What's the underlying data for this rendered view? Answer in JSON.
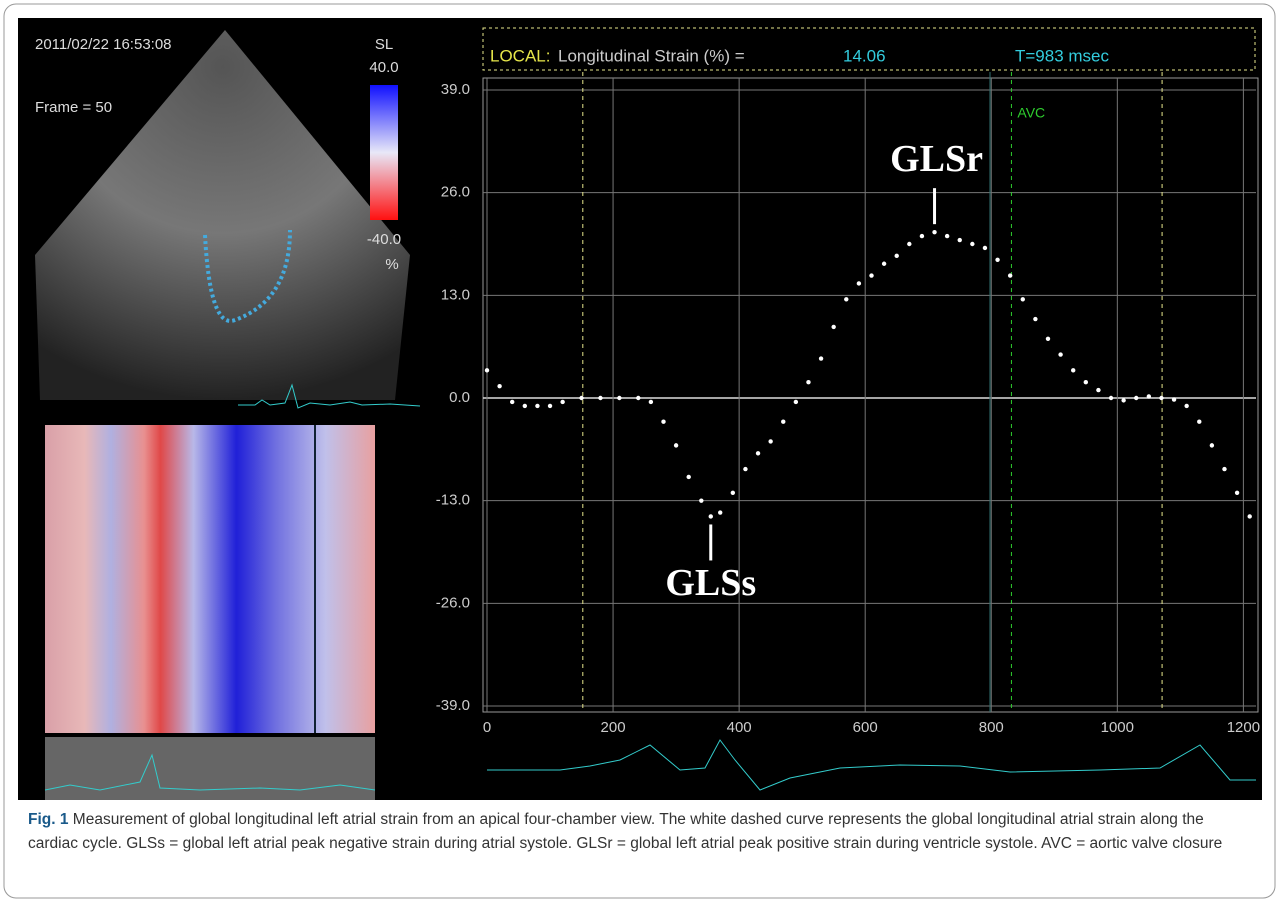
{
  "panel": {
    "timestamp": "2011/02/22 16:53:08",
    "frame": "Frame = 50",
    "scale_name": "SL",
    "scale_max": "40.0",
    "scale_min": "-40.0",
    "scale_unit": "%"
  },
  "chart_data": {
    "type": "line",
    "header_label": "LOCAL:",
    "measure": "Longitudinal Strain (%) =",
    "measure_value": "14.06",
    "time": "T=983 msec",
    "x": [
      0,
      20,
      40,
      60,
      80,
      100,
      120,
      150,
      180,
      210,
      240,
      260,
      280,
      300,
      320,
      340,
      355,
      370,
      390,
      410,
      430,
      450,
      470,
      490,
      510,
      530,
      550,
      570,
      590,
      610,
      630,
      650,
      670,
      690,
      710,
      730,
      750,
      770,
      790,
      810,
      830,
      850,
      870,
      890,
      910,
      930,
      950,
      970,
      990,
      1010,
      1030,
      1050,
      1070,
      1090,
      1110,
      1130,
      1150,
      1170,
      1190,
      1210
    ],
    "values": [
      3.5,
      1.5,
      -0.5,
      -1,
      -1,
      -1,
      -0.5,
      0,
      0,
      0,
      0,
      -0.5,
      -3,
      -6,
      -10,
      -13,
      -15,
      -14.5,
      -12,
      -9,
      -7,
      -5.5,
      -3,
      -0.5,
      2,
      5,
      9,
      12.5,
      14.5,
      15.5,
      17,
      18,
      19.5,
      20.5,
      21,
      20.5,
      20,
      19.5,
      19,
      17.5,
      15.5,
      12.5,
      10,
      7.5,
      5.5,
      3.5,
      2,
      1,
      0,
      -0.3,
      0,
      0.2,
      0,
      -0.2,
      -1,
      -3,
      -6,
      -9,
      -12,
      -15
    ],
    "color": "#ffffff",
    "xlim": [
      0,
      1220
    ],
    "xticks": [
      0,
      200,
      400,
      600,
      800,
      1000,
      1200
    ],
    "ylim": [
      -39,
      39
    ],
    "yticks": [
      {
        "value": -39,
        "label": "-39.0"
      },
      {
        "value": -26,
        "label": "-26.0"
      },
      {
        "value": -13,
        "label": "-13.0"
      },
      {
        "value": 0,
        "label": "0.0"
      },
      {
        "value": 13,
        "label": "13.0"
      },
      {
        "value": 26,
        "label": "26.0"
      },
      {
        "value": 39,
        "label": "39.0"
      }
    ],
    "grid": true,
    "vlines": [
      {
        "x": 152,
        "style": "dashed",
        "color": "#e6e68c"
      },
      {
        "x": 798,
        "style": "solid",
        "color": "#2f6f6f"
      },
      {
        "x": 832,
        "style": "dashed",
        "color": "#2ecc2e",
        "label": "AVC"
      },
      {
        "x": 1071,
        "style": "dashed",
        "color": "#e6e68c"
      }
    ],
    "annotations": [
      {
        "text": "GLSs",
        "x": 355,
        "y": -15,
        "position": "below"
      },
      {
        "text": "GLSr",
        "x": 710,
        "y": 21,
        "position": "above"
      }
    ]
  },
  "caption": {
    "label": "Fig. 1",
    "text": "Measurement of global longitudinal left atrial strain from an apical four-chamber view. The white dashed curve represents the global longitudinal atrial strain along the cardiac cycle. GLSs = global left atrial peak negative strain during atrial systole. GLSr = global left atrial peak positive strain during ventricle systole. AVC = aortic valve closure"
  }
}
